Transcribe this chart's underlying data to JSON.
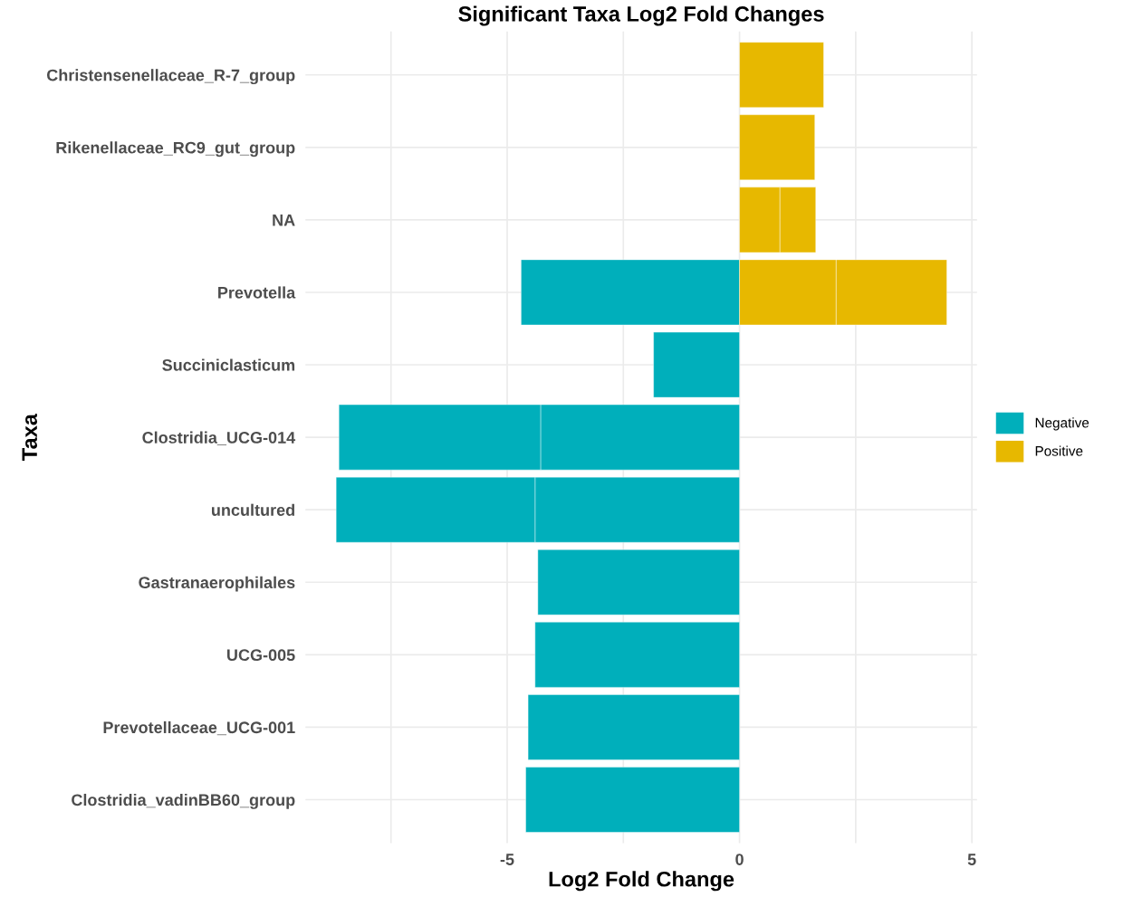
{
  "chart_data": {
    "type": "bar",
    "orientation": "horizontal",
    "stacked": true,
    "title": "Significant Taxa Log2 Fold Changes",
    "xlabel": "Log2 Fold Change",
    "ylabel": "Taxa",
    "categories": [
      "Christensenellaceae_R-7_group",
      "Rikenellaceae_RC9_gut_group",
      "NA",
      "Prevotella",
      "Succiniclasticum",
      "Clostridia_UCG-014",
      "uncultured",
      "Gastranaerophilales",
      "UCG-005",
      "Prevotellaceae_UCG-001",
      "Clostridia_vadinBB60_group"
    ],
    "series": [
      {
        "name": "Negative",
        "color": "#00afbb",
        "values": [
          null,
          null,
          null,
          -4.7,
          -1.85,
          -4.28,
          -4.4,
          -4.34,
          -4.4,
          -4.55,
          -4.6
        ]
      },
      {
        "color": "#00afbb",
        "values": [
          null,
          null,
          null,
          null,
          null,
          -4.34,
          -4.28,
          null,
          null,
          null,
          null
        ]
      },
      {
        "name": "Positive",
        "color": "#e7b800",
        "values": [
          1.81,
          1.62,
          0.87,
          2.08,
          null,
          null,
          null,
          null,
          null,
          null,
          null
        ]
      },
      {
        "color": "#e7b800",
        "values": [
          null,
          null,
          0.77,
          2.38,
          null,
          null,
          null,
          null,
          null,
          null,
          null
        ]
      }
    ],
    "xlim": [
      -9.34,
      5.11
    ],
    "xticks": [
      {
        "value": -7.5,
        "label": null
      },
      -5,
      {
        "value": -2.5,
        "label": null
      },
      0,
      {
        "value": 2.5,
        "label": null
      },
      5
    ],
    "grid": true,
    "legend": "right"
  }
}
